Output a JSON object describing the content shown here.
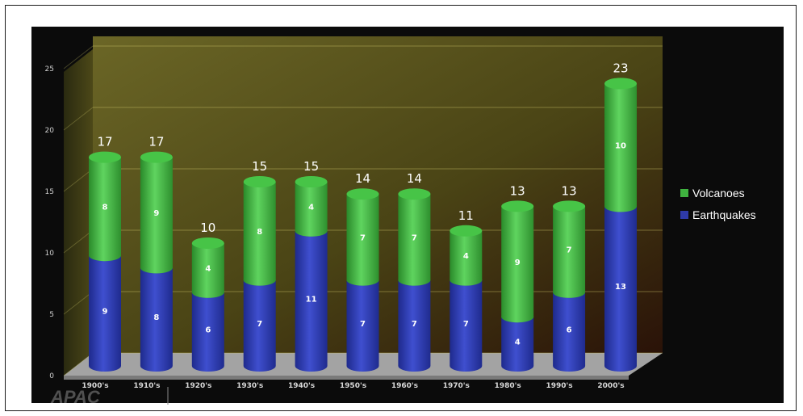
{
  "chart_data": {
    "type": "bar",
    "stacked": true,
    "three_d": true,
    "categories": [
      "1900's",
      "1910's",
      "1920's",
      "1930's",
      "1940's",
      "1950's",
      "1960's",
      "1970's",
      "1980's",
      "1990's",
      "2000's"
    ],
    "series": [
      {
        "name": "Earthquakes",
        "values": [
          9,
          8,
          6,
          7,
          11,
          7,
          7,
          7,
          4,
          6,
          13
        ],
        "color": "#2e3aa8"
      },
      {
        "name": "Volcanoes",
        "values": [
          8,
          9,
          4,
          8,
          4,
          7,
          7,
          4,
          9,
          7,
          10
        ],
        "color": "#3fb33f"
      }
    ],
    "totals": [
      17,
      17,
      10,
      15,
      15,
      14,
      14,
      11,
      13,
      13,
      23
    ],
    "yticks": [
      0,
      5,
      10,
      15,
      20,
      25
    ],
    "ylim": [
      0,
      25
    ],
    "grid": true,
    "legend_position": "right",
    "colors": {
      "background": "#0a0a0a",
      "wall": "#5f5a20",
      "floor": "#9a9a9a"
    }
  },
  "watermark": "APAC"
}
